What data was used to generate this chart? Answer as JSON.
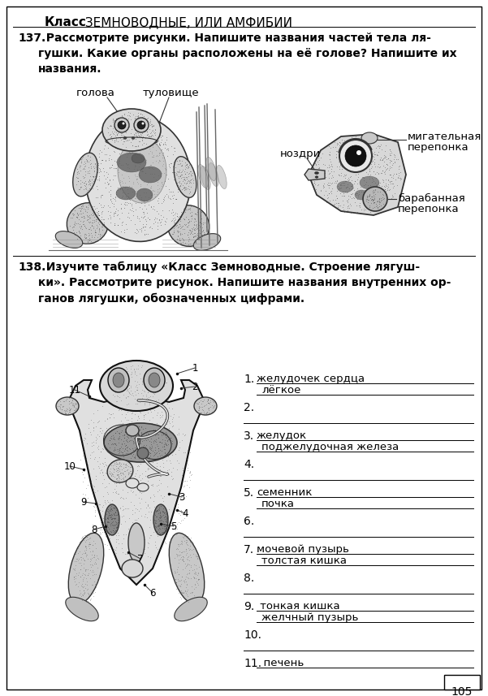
{
  "bg_color": "#ffffff",
  "title_bold": "Класс",
  "title_normal": " ЗЕМНОВОДНЫЕ, ИЛИ АМФИБИИ",
  "task137_num": "137.",
  "task137_text": "  Рассмотрите рисунки. Напишите названия частей тела ля-\nгушки. Какие органы расположены на её голове? Напишите их\nназвания.",
  "label_golova": "голова",
  "label_tulovische": "туловище",
  "label_nozdri": "ноздри",
  "label_migat1": "мигательная",
  "label_migat2": "перепонка",
  "label_barab1": "барабанная",
  "label_barab2": "перепонка",
  "task138_num": "138.",
  "task138_text": "  Изучите таблицу «Класс Земноводные. Строение лягуш-\nки». Рассмотрите рисунок. Напишите названия внутренних ор-\nганов лягушки, обозначенных цифрами.",
  "items": [
    {
      "n": "1.",
      "t1": "желудочек сердца",
      "ul1": true,
      "t2": "лёгкое",
      "ul2": false,
      "blank2": true
    },
    {
      "n": "2.",
      "t1": "",
      "ul1": false,
      "t2": "",
      "ul2": true,
      "blank2": false
    },
    {
      "n": "3.",
      "t1": "желудок",
      "ul1": true,
      "t2": "поджелудочная железа",
      "ul2": false,
      "blank2": true
    },
    {
      "n": "4.",
      "t1": "",
      "ul1": false,
      "t2": "",
      "ul2": true,
      "blank2": false
    },
    {
      "n": "5.",
      "t1": "семенник",
      "ul1": true,
      "t2": "почка",
      "ul2": false,
      "blank2": true
    },
    {
      "n": "6.",
      "t1": "",
      "ul1": false,
      "t2": "",
      "ul2": true,
      "blank2": false
    },
    {
      "n": "7.",
      "t1": "мочевой пузырь",
      "ul1": true,
      "t2": "толстая кишка",
      "ul2": false,
      "blank2": true
    },
    {
      "n": "8.",
      "t1": "",
      "ul1": false,
      "t2": "",
      "ul2": true,
      "blank2": false
    },
    {
      "n": "9.",
      "t1": " тонкая кишка",
      "ul1": true,
      "t2": "желчный пузырь",
      "ul2": false,
      "blank2": true
    },
    {
      "n": "10.",
      "t1": "",
      "ul1": false,
      "t2": "",
      "ul2": true,
      "blank2": false
    },
    {
      "n": "11.",
      "t1": "  печень",
      "ul1": true,
      "t2": "",
      "ul2": false,
      "blank2": false
    }
  ],
  "page_num": "105",
  "tc": "#000000",
  "lc": "#000000",
  "gray1": "#888888",
  "gray2": "#aaaaaa",
  "gray3": "#cccccc",
  "dark": "#333333",
  "very_dark": "#111111"
}
